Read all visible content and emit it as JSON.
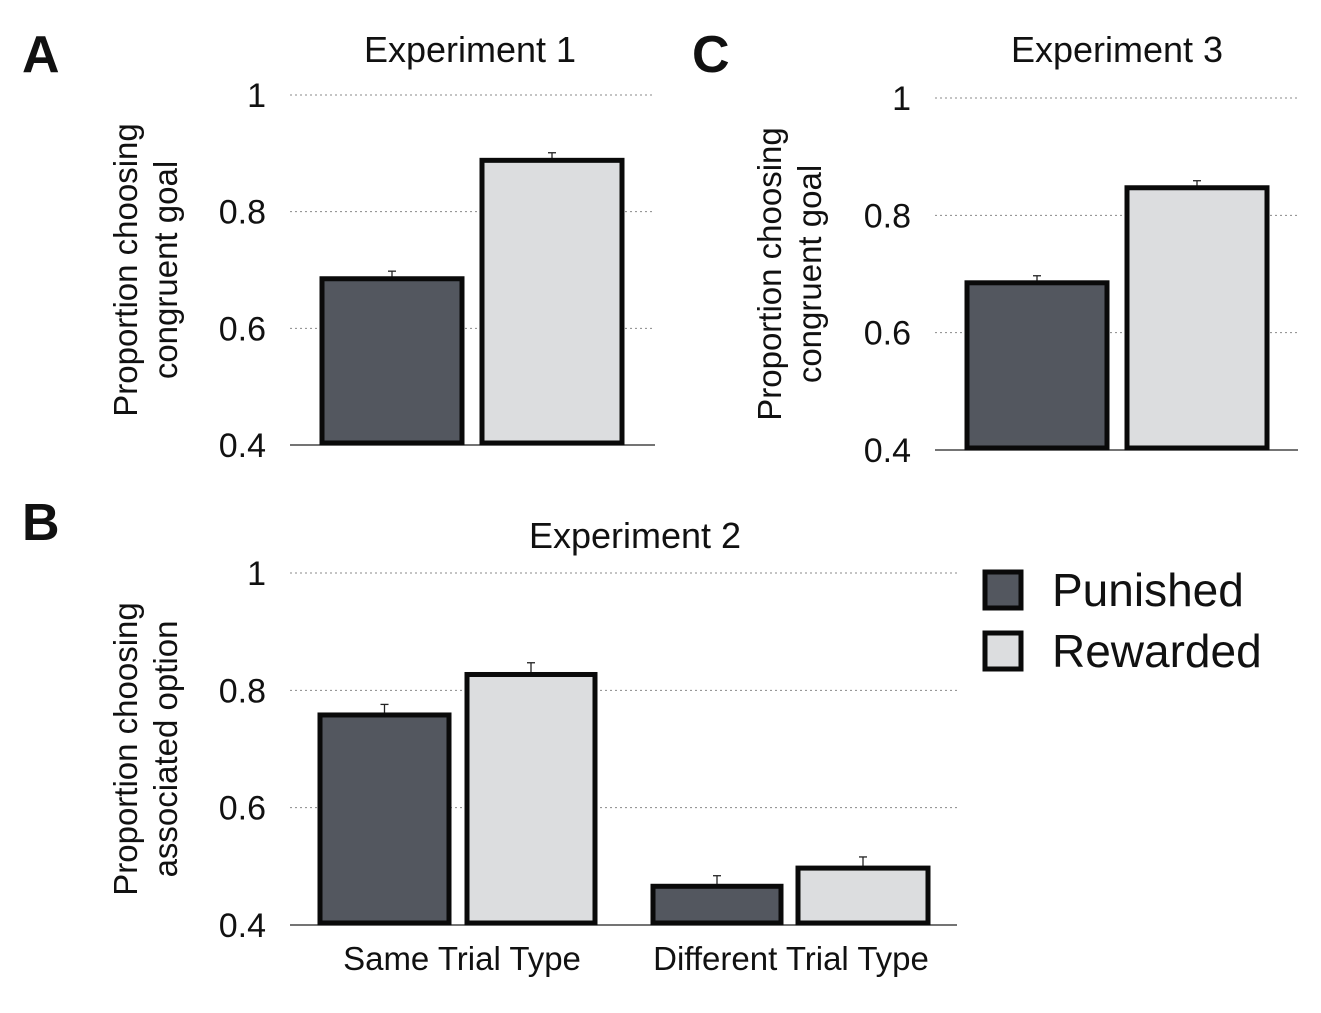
{
  "colors": {
    "punished": "#53575f",
    "rewarded": "#dcdddf",
    "stroke": "#0a0a0a"
  },
  "legend": {
    "placement": "right",
    "entries": [
      {
        "label": "Punished",
        "color": "#53575f"
      },
      {
        "label": "Rewarded",
        "color": "#dcdddf"
      }
    ]
  },
  "chart_data": [
    {
      "panel": "A",
      "type": "bar",
      "title": "Experiment 1",
      "ylabel": [
        "Proportion choosing",
        "congruent goal"
      ],
      "ylim": [
        0.4,
        1
      ],
      "yticks": [
        "0.4",
        "0.6",
        "0.8",
        "1"
      ],
      "grid": true,
      "categories": [
        ""
      ],
      "series": [
        {
          "name": "Punished",
          "values": [
            0.685
          ],
          "errors": [
            0.013
          ]
        },
        {
          "name": "Rewarded",
          "values": [
            0.888
          ],
          "errors": [
            0.013
          ]
        }
      ]
    },
    {
      "panel": "C",
      "type": "bar",
      "title": "Experiment 3",
      "ylabel": [
        "Proportion choosing",
        "congruent goal"
      ],
      "ylim": [
        0.4,
        1
      ],
      "yticks": [
        "0.4",
        "0.6",
        "0.8",
        "1"
      ],
      "grid": true,
      "categories": [
        ""
      ],
      "series": [
        {
          "name": "Punished",
          "values": [
            0.685
          ],
          "errors": [
            0.012
          ]
        },
        {
          "name": "Rewarded",
          "values": [
            0.847
          ],
          "errors": [
            0.012
          ]
        }
      ]
    },
    {
      "panel": "B",
      "type": "bar",
      "title": "Experiment 2",
      "ylabel": [
        "Proportion choosing",
        "associated option"
      ],
      "ylim": [
        0.4,
        1
      ],
      "yticks": [
        "0.4",
        "0.6",
        "0.8",
        "1"
      ],
      "grid": true,
      "categories": [
        "Same Trial Type",
        "Different Trial Type"
      ],
      "series": [
        {
          "name": "Punished",
          "values": [
            0.758,
            0.466
          ],
          "errors": [
            0.018,
            0.018
          ]
        },
        {
          "name": "Rewarded",
          "values": [
            0.827,
            0.497
          ],
          "errors": [
            0.02,
            0.019
          ]
        }
      ]
    }
  ]
}
